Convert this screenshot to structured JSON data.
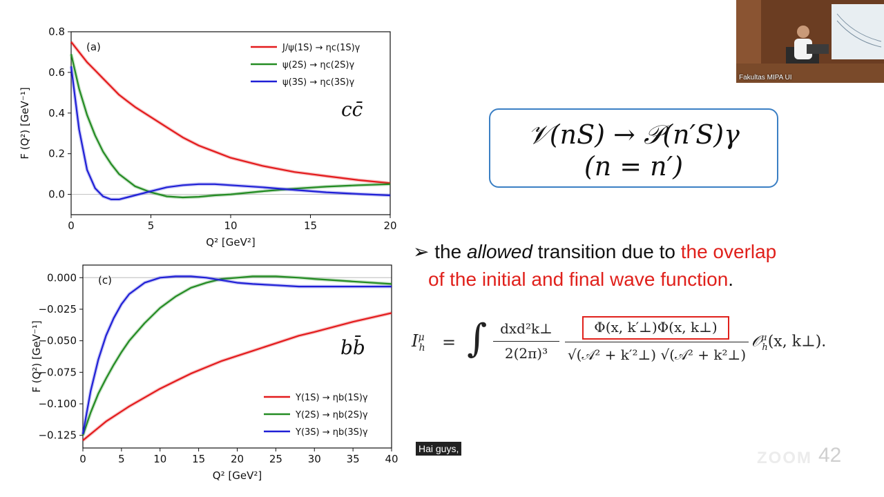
{
  "slide": {
    "formula_line1": "𝒱(nS) → 𝒫(n′S)γ",
    "formula_line2": "(n = n′)",
    "bullet_prefix": "the ",
    "bullet_allowed": "allowed",
    "bullet_mid": " transition due to ",
    "bullet_red1": "the overlap",
    "bullet_red2": "of the initial and final wave function",
    "bullet_end": ".",
    "page_number": "42",
    "integral": {
      "lhs": "I",
      "lhs_sup": "μ",
      "lhs_sub": "h",
      "equals": "=",
      "num_left": "dxd²k⊥",
      "den_left": "2(2π)³",
      "boxed_numerator": "Φ(x, k′⊥)Φ(x, k⊥)",
      "denominator": "√(𝒜² + k′²⊥) √(𝒜² + k²⊥)",
      "tail": "𝒪",
      "tail_sup": "μ",
      "tail_sub": "h",
      "tail_args": "(x, k⊥)."
    }
  },
  "video": {
    "label": "Fakultas MIPA UI",
    "colors": {
      "wall": "#6b3d22",
      "screen": "#e8eef2",
      "shirt": "#f3f3f3"
    }
  },
  "caption": {
    "text": "Hai guys,"
  },
  "watermark": {
    "text": "ZOOM"
  },
  "chart_data": [
    {
      "type": "line",
      "panel": "(a)",
      "annotation": "cc̄",
      "xlabel": "Q² [GeV²]",
      "ylabel": "F (Q²) [GeV⁻¹]",
      "xlim": [
        0,
        20
      ],
      "ylim": [
        -0.1,
        0.8
      ],
      "xticks": [
        "0",
        "5",
        "10",
        "15",
        "20"
      ],
      "yticks": [
        "0.8",
        "0.6",
        "0.4",
        "0.2",
        "0.0"
      ],
      "legend_position": "top-right",
      "x": [
        0,
        0.5,
        1,
        1.5,
        2,
        2.5,
        3,
        3.5,
        4,
        5,
        6,
        7,
        8,
        9,
        10,
        12,
        14,
        16,
        18,
        20
      ],
      "series": [
        {
          "name": "J/ψ(1S) → ηc(1S)γ",
          "color": "#e31a1c",
          "values": [
            0.75,
            0.7,
            0.65,
            0.61,
            0.57,
            0.53,
            0.49,
            0.46,
            0.43,
            0.38,
            0.33,
            0.28,
            0.24,
            0.21,
            0.18,
            0.14,
            0.11,
            0.09,
            0.07,
            0.055
          ]
        },
        {
          "name": "ψ(2S) → ηc(2S)γ",
          "color": "#238b22",
          "values": [
            0.69,
            0.52,
            0.39,
            0.29,
            0.21,
            0.15,
            0.1,
            0.07,
            0.04,
            0.01,
            -0.01,
            -0.015,
            -0.012,
            -0.005,
            0.0,
            0.015,
            0.028,
            0.038,
            0.045,
            0.05
          ]
        },
        {
          "name": "ψ(3S) → ηc(3S)γ",
          "color": "#1f1fd6",
          "values": [
            0.63,
            0.32,
            0.12,
            0.03,
            -0.01,
            -0.025,
            -0.025,
            -0.015,
            -0.005,
            0.015,
            0.035,
            0.045,
            0.05,
            0.05,
            0.045,
            0.035,
            0.022,
            0.01,
            0.002,
            -0.005
          ]
        }
      ]
    },
    {
      "type": "line",
      "panel": "(c)",
      "annotation": "bb̄",
      "xlabel": "Q² [GeV²]",
      "ylabel": "F (Q²) [GeV⁻¹]",
      "xlim": [
        0,
        40
      ],
      "ylim": [
        -0.135,
        0.01
      ],
      "xticks": [
        "0",
        "5",
        "10",
        "15",
        "20",
        "25",
        "30",
        "35",
        "40"
      ],
      "yticks": [
        "0.000",
        "−0.025",
        "−0.050",
        "−0.075",
        "−0.100",
        "−0.125"
      ],
      "legend_position": "bottom-right",
      "x": [
        0,
        1,
        2,
        3,
        4,
        5,
        6,
        8,
        10,
        12,
        14,
        16,
        18,
        20,
        22,
        25,
        28,
        30,
        35,
        40
      ],
      "series": [
        {
          "name": "Υ(1S) → ηb(1S)γ",
          "color": "#e31a1c",
          "values": [
            -0.129,
            -0.124,
            -0.119,
            -0.114,
            -0.11,
            -0.106,
            -0.102,
            -0.095,
            -0.088,
            -0.082,
            -0.076,
            -0.071,
            -0.066,
            -0.062,
            -0.058,
            -0.052,
            -0.046,
            -0.043,
            -0.035,
            -0.028
          ]
        },
        {
          "name": "Υ(2S) → ηb(2S)γ",
          "color": "#238b22",
          "values": [
            -0.125,
            -0.107,
            -0.092,
            -0.08,
            -0.069,
            -0.059,
            -0.05,
            -0.036,
            -0.024,
            -0.015,
            -0.008,
            -0.004,
            -0.001,
            0.0,
            0.001,
            0.001,
            0.0,
            -0.001,
            -0.003,
            -0.005
          ]
        },
        {
          "name": "Υ(3S) → ηb(3S)γ",
          "color": "#1f1fd6",
          "values": [
            -0.124,
            -0.09,
            -0.065,
            -0.046,
            -0.032,
            -0.021,
            -0.013,
            -0.004,
            0.0,
            0.001,
            0.001,
            0.0,
            -0.002,
            -0.004,
            -0.005,
            -0.006,
            -0.007,
            -0.007,
            -0.007,
            -0.007
          ]
        }
      ]
    }
  ]
}
